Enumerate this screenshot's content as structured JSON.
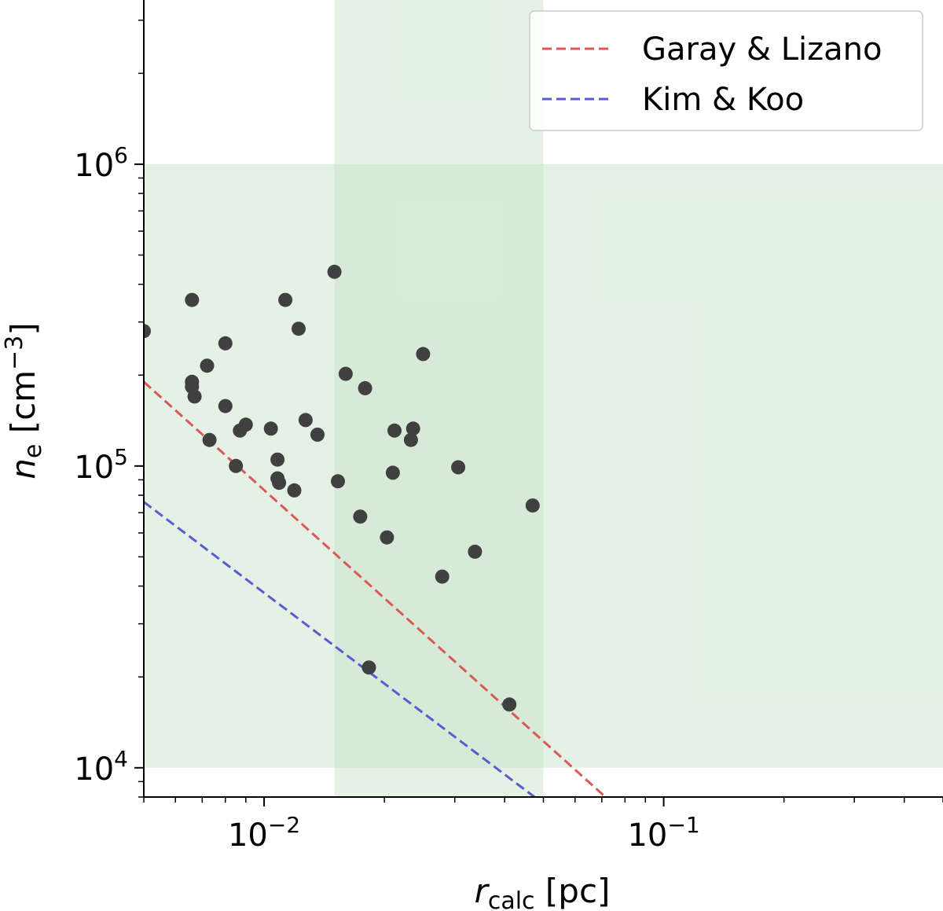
{
  "chart_data": {
    "type": "scatter",
    "xscale": "log",
    "yscale": "log",
    "xlim": [
      0.005,
      0.5
    ],
    "ylim": [
      8000,
      3500000
    ],
    "xlabel": {
      "main": "r",
      "sub": "calc",
      "rest": " [pc]"
    },
    "ylabel": {
      "main": "n",
      "sub": "e",
      "rest": " [cm",
      "sup": "−3",
      "end": "]"
    },
    "xticks": [
      {
        "value": 0.01,
        "base": "10",
        "exp": "−2"
      },
      {
        "value": 0.1,
        "base": "10",
        "exp": "−1"
      }
    ],
    "yticks": [
      {
        "value": 10000,
        "base": "10",
        "exp": "4"
      },
      {
        "value": 100000,
        "base": "10",
        "exp": "5"
      },
      {
        "value": 1000000,
        "base": "10",
        "exp": "6"
      }
    ],
    "shaded_regions": [
      {
        "orientation": "horizontal",
        "y_range": [
          10000,
          1000000
        ],
        "color": "#c9e4c9"
      },
      {
        "orientation": "vertical",
        "x_range": [
          0.015,
          0.05
        ],
        "color": "#c9e4c9"
      }
    ],
    "lines": [
      {
        "name": "Garay & Lizano",
        "color": "#d9595b",
        "style": "dashed",
        "points": [
          [
            0.005,
            190000
          ],
          [
            0.0715,
            8000
          ]
        ]
      },
      {
        "name": "Kim & Koo",
        "color": "#5b5bd1",
        "style": "dashed",
        "points": [
          [
            0.005,
            76000
          ],
          [
            0.0475,
            8000
          ]
        ]
      }
    ],
    "legend": {
      "position": "top-right",
      "entries": [
        "Garay & Lizano",
        "Kim & Koo"
      ]
    },
    "marker_color": "#404040",
    "points": [
      [
        0.005,
        280000
      ],
      [
        0.0066,
        355000
      ],
      [
        0.0066,
        190000
      ],
      [
        0.0066,
        183000
      ],
      [
        0.0067,
        170000
      ],
      [
        0.0072,
        215000
      ],
      [
        0.0073,
        122000
      ],
      [
        0.008,
        255000
      ],
      [
        0.008,
        158000
      ],
      [
        0.0085,
        100000
      ],
      [
        0.0087,
        131000
      ],
      [
        0.009,
        137000
      ],
      [
        0.0104,
        133000
      ],
      [
        0.0108,
        105000
      ],
      [
        0.0108,
        91000
      ],
      [
        0.0109,
        88000
      ],
      [
        0.0113,
        355000
      ],
      [
        0.0119,
        83000
      ],
      [
        0.0122,
        285000
      ],
      [
        0.0127,
        142000
      ],
      [
        0.0136,
        127000
      ],
      [
        0.015,
        440000
      ],
      [
        0.0153,
        89000
      ],
      [
        0.016,
        202000
      ],
      [
        0.0174,
        68000
      ],
      [
        0.0179,
        181000
      ],
      [
        0.0183,
        21500
      ],
      [
        0.0203,
        58000
      ],
      [
        0.021,
        95000
      ],
      [
        0.0212,
        131000
      ],
      [
        0.0233,
        122000
      ],
      [
        0.0236,
        133000
      ],
      [
        0.025,
        235000
      ],
      [
        0.0279,
        43000
      ],
      [
        0.0306,
        99000
      ],
      [
        0.0337,
        52000
      ],
      [
        0.0411,
        16200
      ],
      [
        0.047,
        74000
      ]
    ]
  }
}
